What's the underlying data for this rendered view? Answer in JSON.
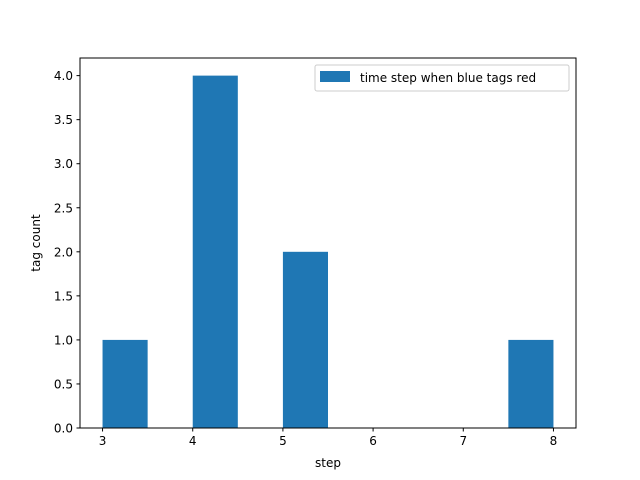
{
  "chart_data": {
    "type": "bar",
    "bins": [
      {
        "x_start": 3.0,
        "x_end": 3.5,
        "value": 1
      },
      {
        "x_start": 3.5,
        "x_end": 4.0,
        "value": 0
      },
      {
        "x_start": 4.0,
        "x_end": 4.5,
        "value": 4
      },
      {
        "x_start": 4.5,
        "x_end": 5.0,
        "value": 0
      },
      {
        "x_start": 5.0,
        "x_end": 5.5,
        "value": 2
      },
      {
        "x_start": 5.5,
        "x_end": 6.0,
        "value": 0
      },
      {
        "x_start": 6.0,
        "x_end": 6.5,
        "value": 0
      },
      {
        "x_start": 6.5,
        "x_end": 7.0,
        "value": 0
      },
      {
        "x_start": 7.0,
        "x_end": 7.5,
        "value": 0
      },
      {
        "x_start": 7.5,
        "x_end": 8.0,
        "value": 1
      }
    ],
    "series_name": "time step when blue tags red",
    "xlabel": "step",
    "ylabel": "tag count",
    "xlim": [
      2.75,
      8.25
    ],
    "ylim": [
      0,
      4.2
    ],
    "xticks": [
      "3",
      "4",
      "5",
      "6",
      "7",
      "8"
    ],
    "yticks": [
      "0.0",
      "0.5",
      "1.0",
      "1.5",
      "2.0",
      "2.5",
      "3.0",
      "3.5",
      "4.0"
    ],
    "bar_color": "#1f77b4",
    "grid": false,
    "legend_position": "upper right"
  }
}
